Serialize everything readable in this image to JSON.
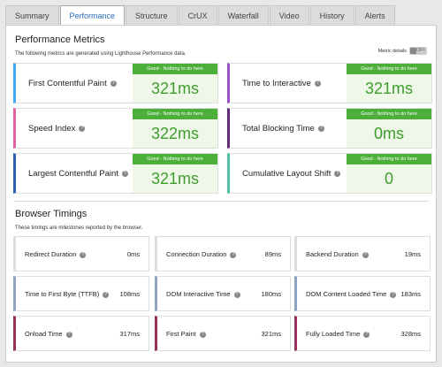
{
  "tabs": [
    "Summary",
    "Performance",
    "Structure",
    "CrUX",
    "Waterfall",
    "Video",
    "History",
    "Alerts"
  ],
  "metrics": {
    "title": "Performance Metrics",
    "description": "The following metrics are generated using Lighthouse Performance data.",
    "toggle_label": "Metric details",
    "toggle_state": "OFF",
    "items": [
      {
        "name": "First Contentful Paint",
        "status": "Good - Nothing to do here",
        "value": "321ms"
      },
      {
        "name": "Time to Interactive",
        "status": "Good - Nothing to do here",
        "value": "321ms"
      },
      {
        "name": "Speed Index",
        "status": "Good - Nothing to do here",
        "value": "322ms"
      },
      {
        "name": "Total Blocking Time",
        "status": "Good - Nothing to do here",
        "value": "0ms"
      },
      {
        "name": "Largest Contentful Paint",
        "status": "Good - Nothing to do here",
        "value": "321ms"
      },
      {
        "name": "Cumulative Layout Shift",
        "status": "Good - Nothing to do here",
        "value": "0"
      }
    ]
  },
  "timings": {
    "title": "Browser Timings",
    "description": "These timings are milestones reported by the browser.",
    "items": [
      {
        "name": "Redirect Duration",
        "value": "0ms"
      },
      {
        "name": "Connection Duration",
        "value": "89ms"
      },
      {
        "name": "Backend Duration",
        "value": "19ms"
      },
      {
        "name": "Time to First Byte (TTFB)",
        "value": "108ms"
      },
      {
        "name": "DOM Interactive Time",
        "value": "180ms"
      },
      {
        "name": "DOM Content Loaded Time",
        "value": "183ms"
      },
      {
        "name": "Onload Time",
        "value": "317ms"
      },
      {
        "name": "First Paint",
        "value": "321ms"
      },
      {
        "name": "Fully Loaded Time",
        "value": "328ms"
      }
    ]
  }
}
